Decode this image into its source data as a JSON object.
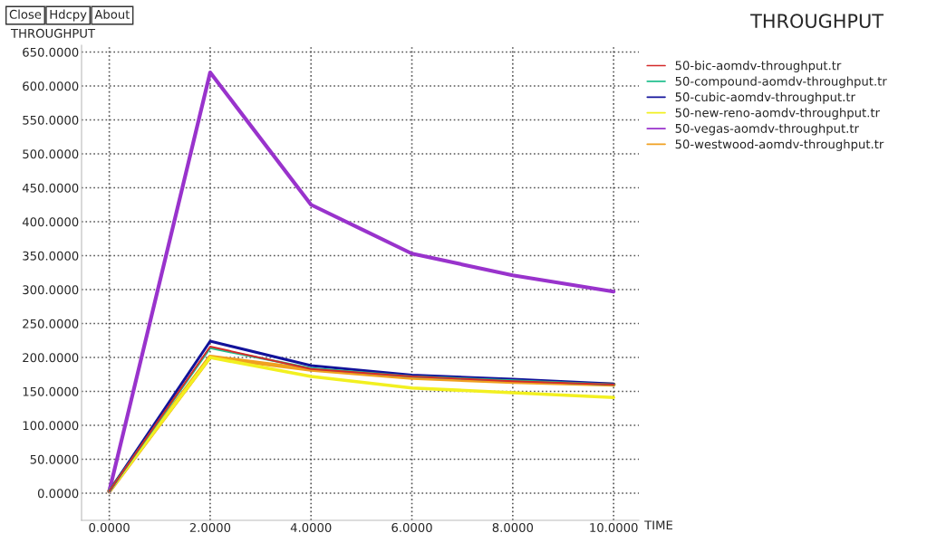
{
  "chart_data": {
    "type": "line",
    "title": "THROUGHPUT",
    "ylabel": "THROUGHPUT",
    "xlabel": "TIME",
    "annotations": [
      "Close",
      "Hdcpy",
      "About"
    ],
    "x": [
      0,
      2,
      4,
      6,
      8,
      10
    ],
    "series": [
      {
        "name": "50-bic-aomdv-throughput.tr",
        "color": "#d42a2a",
        "values": [
          3,
          216,
          183,
          172,
          165,
          160
        ]
      },
      {
        "name": "50-compound-aomdv-throughput.tr",
        "color": "#22c08e",
        "values": [
          3,
          214,
          184,
          172,
          166,
          160
        ]
      },
      {
        "name": "50-cubic-aomdv-throughput.tr",
        "color": "#12129a",
        "values": [
          3,
          224,
          188,
          174,
          168,
          161
        ]
      },
      {
        "name": "50-new-reno-aomdv-throughput.tr",
        "color": "#f2f020",
        "values": [
          3,
          200,
          172,
          155,
          148,
          141
        ]
      },
      {
        "name": "50-vegas-aomdv-throughput.tr",
        "color": "#9933cc",
        "values": [
          3,
          620,
          425,
          353,
          321,
          297
        ]
      },
      {
        "name": "50-westwood-aomdv-throughput.tr",
        "color": "#f0a020",
        "values": [
          3,
          201,
          182,
          170,
          164,
          160
        ]
      }
    ],
    "xlim": [
      -0.55,
      10.5
    ],
    "ylim": [
      -40,
      660
    ],
    "xticks": [
      {
        "value": 0,
        "label": "0.0000"
      },
      {
        "value": 2,
        "label": "2.0000"
      },
      {
        "value": 4,
        "label": "4.0000"
      },
      {
        "value": 6,
        "label": "6.0000"
      },
      {
        "value": 8,
        "label": "8.0000"
      },
      {
        "value": 10,
        "label": "10.0000"
      }
    ],
    "yticks": [
      {
        "value": 0,
        "label": "0.0000"
      },
      {
        "value": 50,
        "label": "50.0000"
      },
      {
        "value": 100,
        "label": "100.0000"
      },
      {
        "value": 150,
        "label": "150.0000"
      },
      {
        "value": 200,
        "label": "200.0000"
      },
      {
        "value": 250,
        "label": "250.0000"
      },
      {
        "value": 300,
        "label": "300.0000"
      },
      {
        "value": 350,
        "label": "350.0000"
      },
      {
        "value": 400,
        "label": "400.0000"
      },
      {
        "value": 450,
        "label": "450.0000"
      },
      {
        "value": 500,
        "label": "500.0000"
      },
      {
        "value": 550,
        "label": "550.0000"
      },
      {
        "value": 600,
        "label": "600.0000"
      },
      {
        "value": 650,
        "label": "650.0000"
      }
    ],
    "grid": true,
    "legend": "top right",
    "marker": "none",
    "line_style": "solid"
  }
}
